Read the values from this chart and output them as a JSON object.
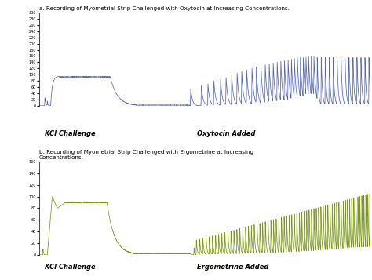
{
  "title_a": "a. Recording of Myometrial Strip Challenged with Oxytocin at Increasing Concentrations.",
  "title_b": "b. Recording of Myometrial Strip Challenged with Ergometrine at Increasing\nConcentrations.",
  "label_kcl": "KCl Challenge",
  "label_oxytocin": "Oxytocin Added",
  "label_ergometrine": "Ergometrine Added",
  "color_a": "#5566bb",
  "color_b": "#7a9a18",
  "ylim_a": [
    0,
    300
  ],
  "ylim_b": [
    0,
    160
  ],
  "yticks_a": [
    0,
    20,
    40,
    60,
    80,
    100,
    120,
    140,
    160,
    180,
    200,
    220,
    240,
    260,
    280,
    300
  ],
  "yticks_b": [
    0,
    20,
    40,
    60,
    80,
    100,
    120,
    140,
    160
  ],
  "bg_color": "#ffffff"
}
